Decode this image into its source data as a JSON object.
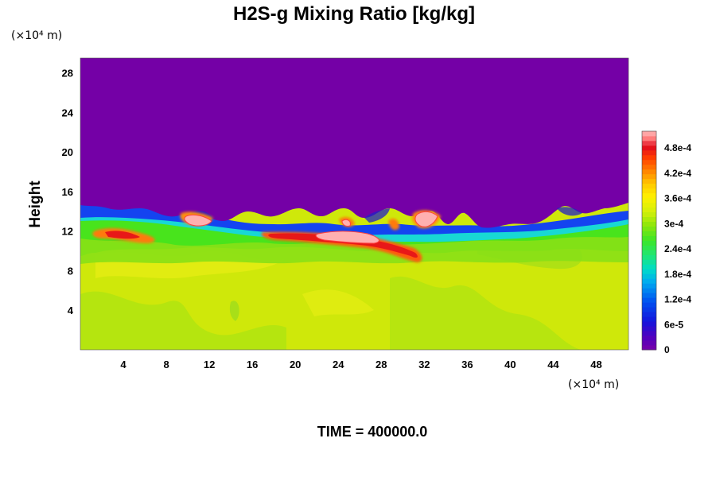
{
  "chart_data": {
    "type": "heatmap",
    "title": "H2S-g Mixing Ratio [kg/kg]",
    "ylabel": "Height",
    "y_unit_label": "(×10⁴ m)",
    "x_unit_label": "(×10⁴ m)",
    "xlim": [
      0,
      51
    ],
    "ylim": [
      0,
      29.5
    ],
    "x_ticks": [
      4,
      8,
      12,
      16,
      20,
      24,
      28,
      32,
      36,
      40,
      44,
      48
    ],
    "y_ticks": [
      4,
      8,
      12,
      16,
      20,
      24,
      28
    ],
    "footer": "TIME = 400000.0",
    "colorbar": {
      "min": 0,
      "max": 0.00052,
      "tick_values": [
        0,
        6e-05,
        0.00012,
        0.00018,
        0.00024,
        0.0003,
        0.00036,
        0.00042,
        0.00048
      ],
      "tick_labels": [
        "0",
        "6e-5",
        "1.2e-4",
        "1.8e-4",
        "2.4e-4",
        "3e-4",
        "3.6e-4",
        "4.2e-4",
        "4.8e-4"
      ]
    },
    "regions": [
      {
        "name": "upper-layer",
        "y_range": [
          14.5,
          29.5
        ],
        "value": 0
      },
      {
        "name": "lower-layer",
        "y_range": [
          0,
          10
        ],
        "value": 0.00034
      },
      {
        "name": "front-band",
        "y_range": [
          10,
          14.5
        ],
        "value": 0.0003
      },
      {
        "name": "max-filament",
        "x_range": [
          17,
          31
        ],
        "y_range": [
          10,
          12
        ],
        "value": 0.0005
      }
    ]
  }
}
